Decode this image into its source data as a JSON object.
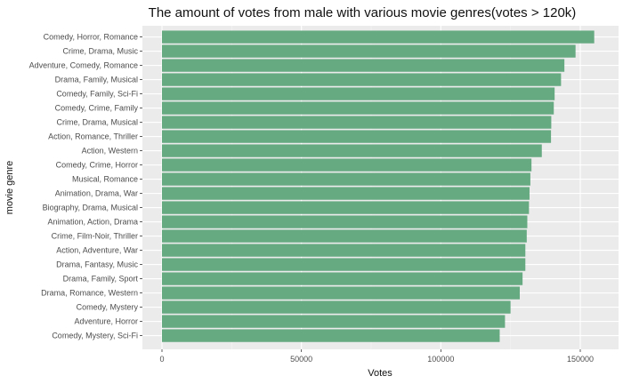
{
  "chart_data": {
    "type": "bar",
    "orientation": "horizontal",
    "title": "The amount of votes from male with various movie genres(votes > 120k)",
    "xlabel": "Votes",
    "ylabel": "movie genre",
    "xlim": [
      0,
      163000
    ],
    "xticks": [
      0,
      50000,
      100000,
      150000
    ],
    "xtick_labels": [
      "0",
      "50000",
      "100000",
      "150000"
    ],
    "grid": true,
    "legend": "none",
    "bar_color": "#66aa82",
    "panel_color": "#ebebeb",
    "categories": [
      "Comedy, Horror, Romance",
      "Crime, Drama, Music",
      "Adventure, Comedy, Romance",
      "Drama, Family, Musical",
      "Comedy, Family, Sci-Fi",
      "Comedy, Crime, Family",
      "Crime, Drama, Musical",
      "Action, Romance, Thriller",
      "Action, Western",
      "Comedy, Crime, Horror",
      "Musical, Romance",
      "Animation, Drama, War",
      "Biography, Drama, Musical",
      "Animation, Action, Drama",
      "Crime, Film-Noir, Thriller",
      "Action, Adventure, War",
      "Drama, Fantasy, Music",
      "Drama, Family, Sport",
      "Drama, Romance, Western",
      "Comedy, Mystery",
      "Adventure, Horror",
      "Comedy, Mystery, Sci-Fi"
    ],
    "values": [
      155000,
      148300,
      144300,
      143100,
      140800,
      140500,
      139600,
      139500,
      136200,
      132500,
      132100,
      131800,
      131600,
      131000,
      130800,
      130300,
      130300,
      129300,
      128300,
      125000,
      123000,
      121100
    ]
  }
}
